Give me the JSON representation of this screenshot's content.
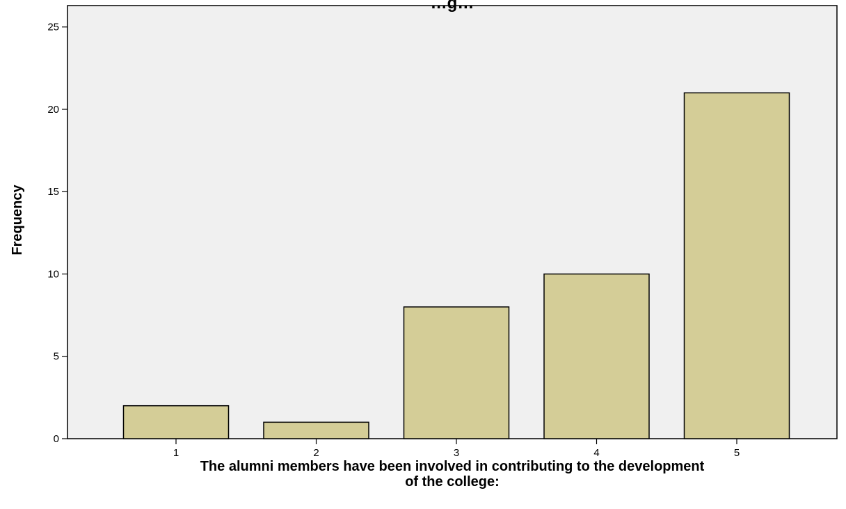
{
  "chart_data": {
    "type": "bar",
    "title": "…g…",
    "categories": [
      "1",
      "2",
      "3",
      "4",
      "5"
    ],
    "values": [
      2,
      1,
      8,
      10,
      21
    ],
    "xlabel_lines": [
      "The alumni members have been involved in contributing to the development",
      "of the college:"
    ],
    "ylabel": "Frequency",
    "ylim": [
      0,
      25
    ],
    "yticks": [
      0,
      5,
      10,
      15,
      20,
      25
    ],
    "grid": false,
    "colors": {
      "bar_fill": "#d4cd97",
      "bar_stroke": "#000000",
      "plot_background": "#f0f0f0"
    }
  }
}
